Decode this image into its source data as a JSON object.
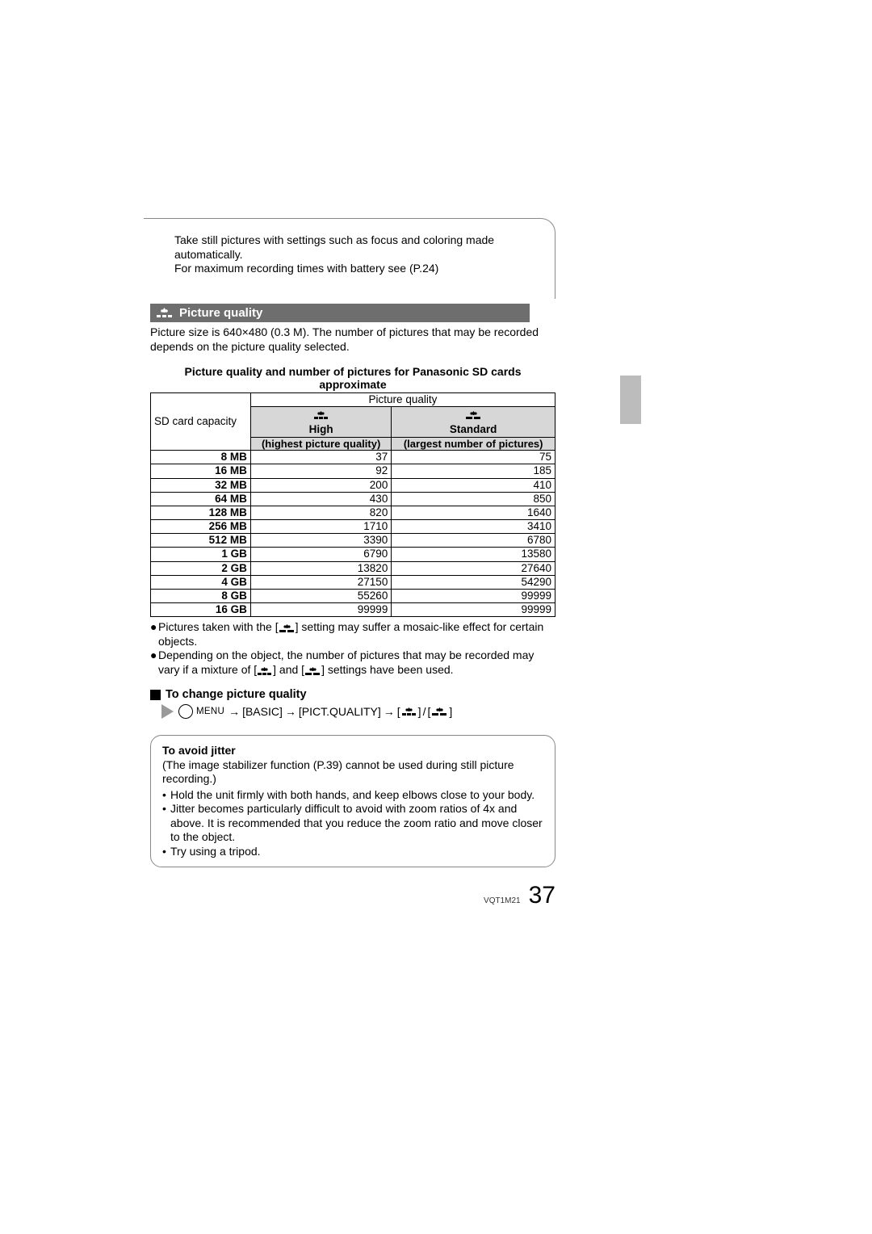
{
  "intro": {
    "line1": "Take still pictures with settings such as focus and coloring made automatically.",
    "line2": "For maximum recording times with battery see (P.24)"
  },
  "section": {
    "title": "Picture quality"
  },
  "picture_size_text": "Picture size is 640×480 (0.3 M). The number of pictures that may be recorded depends on the picture quality selected.",
  "table": {
    "title_line1": "Picture quality and number of pictures for Panasonic SD cards",
    "title_line2": "approximate",
    "corner_label": "SD card capacity",
    "superheader": "Picture quality",
    "col_high": "High",
    "col_high_sub": "(highest picture quality)",
    "col_std": "Standard",
    "col_std_sub": "(largest number of pictures)",
    "rows": [
      {
        "cap": "8 MB",
        "high": "37",
        "std": "75"
      },
      {
        "cap": "16 MB",
        "high": "92",
        "std": "185"
      },
      {
        "cap": "32 MB",
        "high": "200",
        "std": "410"
      },
      {
        "cap": "64 MB",
        "high": "430",
        "std": "850"
      },
      {
        "cap": "128 MB",
        "high": "820",
        "std": "1640"
      },
      {
        "cap": "256 MB",
        "high": "1710",
        "std": "3410"
      },
      {
        "cap": "512 MB",
        "high": "3390",
        "std": "6780"
      },
      {
        "cap": "1 GB",
        "high": "6790",
        "std": "13580"
      },
      {
        "cap": "2 GB",
        "high": "13820",
        "std": "27640"
      },
      {
        "cap": "4 GB",
        "high": "27150",
        "std": "54290"
      },
      {
        "cap": "8 GB",
        "high": "55260",
        "std": "99999"
      },
      {
        "cap": "16 GB",
        "high": "99999",
        "std": "99999"
      }
    ]
  },
  "notes": {
    "n1a": "Pictures taken with the [",
    "n1b": "] setting may suffer a mosaic-like effect for certain objects.",
    "n2a": "Depending on the object, the number of pictures that may be recorded may vary if a mixture of [",
    "n2b": "] and [",
    "n2c": "] settings have been used."
  },
  "change_quality": {
    "heading": "To change picture quality",
    "menu_label": "MENU",
    "path1": "[BASIC]",
    "path2": "[PICT.QUALITY]",
    "arrow": "→",
    "open": "[",
    "close": "]",
    "slash": " / "
  },
  "jitter": {
    "title": "To avoid jitter",
    "intro": "(The image stabilizer function (P.39) cannot be used during still picture recording.)",
    "b1": "Hold the unit firmly with both hands, and keep elbows close to your body.",
    "b2": "Jitter becomes particularly difficult to avoid with zoom ratios of 4x and above. It is recommended that you reduce the zoom ratio and move closer to the object.",
    "b3": "Try using a tripod."
  },
  "footer": {
    "code": "VQT1M21",
    "page": "37"
  },
  "colors": {
    "bar": "#6e6e6e",
    "gray_header": "#d7d7d7",
    "side_tab": "#bcbcbc",
    "arrow": "#9a9a9a"
  }
}
